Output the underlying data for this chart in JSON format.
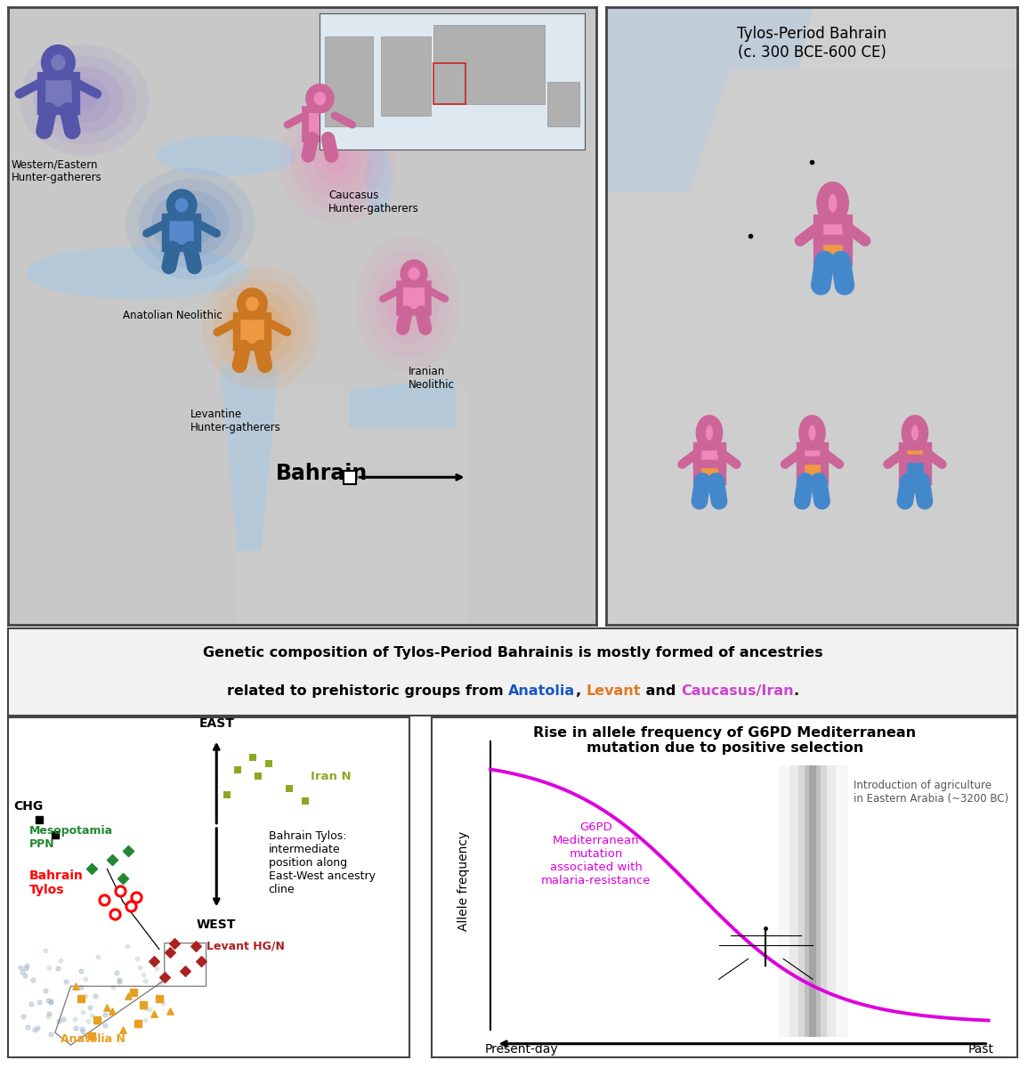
{
  "title_top": "Tylos-Period Bahrain\n(c. 300 BCE-600 CE)",
  "bottom_right_title": "Rise in allele frequency of G6PD Mediterranean\nmutation due to positive selection",
  "bottom_right_ylabel": "Allele frequency",
  "bottom_right_xlabel_left": "Present-day",
  "bottom_right_xlabel_right": "Past",
  "g6pd_label": "G6PD\nMediterranean\nmutation\nassociated with\nmalaria-resistance",
  "agriculture_label": "Introduction of agriculture\nin Eastern Arabia (~3200 BC)",
  "ann_line1": "Genetic composition of Tylos-Period Bahrainis is mostly formed of ancestries",
  "ann_line2_pre": "related to prehistoric groups from ",
  "ann_anatolia": "Anatolia",
  "ann_comma": ", ",
  "ann_levant": "Levant",
  "ann_and": " and ",
  "ann_caucasus": "Caucasus/Iran",
  "ann_period": ".",
  "color_anatolia": "#1a56c4",
  "color_levant": "#e07820",
  "color_caucasus": "#cc44cc",
  "color_black": "#000000",
  "color_whe": "#7777bb",
  "color_whe_outline": "#5555aa",
  "color_an": "#5588cc",
  "color_an_outline": "#336699",
  "color_chg": "#ee88bb",
  "color_chg_outline": "#cc6699",
  "color_lev": "#ee9944",
  "color_lev_outline": "#cc7722",
  "color_iran": "#ee88bb",
  "color_iran_outline": "#cc6699",
  "color_blue_legs": "#4488cc",
  "figure_bg": "#ffffff",
  "map_bg": "#d0d0d0"
}
